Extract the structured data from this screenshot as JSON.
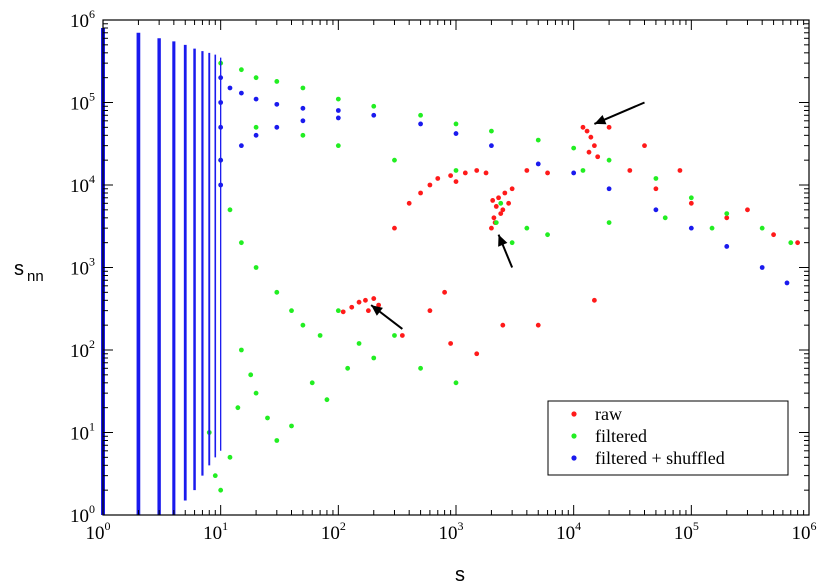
{
  "chart_data": {
    "type": "scatter",
    "xscale": "log",
    "yscale": "log",
    "xlim": [
      1,
      1000000
    ],
    "ylim": [
      1,
      1000000
    ],
    "xlabel": "s",
    "ylabel": "s",
    "ylabel_subscript": "nn",
    "tick_base": "10",
    "xticks": [
      {
        "value": 1,
        "exp": "0"
      },
      {
        "value": 10,
        "exp": "1"
      },
      {
        "value": 100,
        "exp": "2"
      },
      {
        "value": 1000,
        "exp": "3"
      },
      {
        "value": 10000,
        "exp": "4"
      },
      {
        "value": 100000,
        "exp": "5"
      },
      {
        "value": 1000000,
        "exp": "6"
      }
    ],
    "yticks": [
      {
        "value": 1,
        "exp": "0"
      },
      {
        "value": 10,
        "exp": "1"
      },
      {
        "value": 100,
        "exp": "2"
      },
      {
        "value": 1000,
        "exp": "3"
      },
      {
        "value": 10000,
        "exp": "4"
      },
      {
        "value": 100000,
        "exp": "5"
      },
      {
        "value": 1000000,
        "exp": "6"
      }
    ],
    "legend_position": "bottom-right",
    "grid": false,
    "series": [
      {
        "name": "raw",
        "color": "#ff1a1a",
        "points": [
          [
            150,
            380
          ],
          [
            130,
            330
          ],
          [
            170,
            400
          ],
          [
            200,
            420
          ],
          [
            220,
            350
          ],
          [
            180,
            300
          ],
          [
            110,
            290
          ],
          [
            2000,
            3000
          ],
          [
            2100,
            4000
          ],
          [
            2200,
            5500
          ],
          [
            2050,
            6500
          ],
          [
            2300,
            7000
          ],
          [
            2400,
            4500
          ],
          [
            2150,
            3500
          ],
          [
            2600,
            8000
          ],
          [
            3000,
            9000
          ],
          [
            2500,
            5000
          ],
          [
            2800,
            6000
          ],
          [
            12000,
            50000
          ],
          [
            13000,
            45000
          ],
          [
            14000,
            38000
          ],
          [
            15000,
            30000
          ],
          [
            13500,
            25000
          ],
          [
            16000,
            22000
          ],
          [
            700,
            12000
          ],
          [
            900,
            13000
          ],
          [
            1200,
            14000
          ],
          [
            1500,
            15000
          ],
          [
            1800,
            14000
          ],
          [
            600,
            10000
          ],
          [
            400,
            6000
          ],
          [
            500,
            8000
          ],
          [
            300,
            3000
          ],
          [
            1000,
            11000
          ],
          [
            4000,
            15000
          ],
          [
            6000,
            14000
          ],
          [
            30000,
            15000
          ],
          [
            50000,
            9000
          ],
          [
            100000,
            6000
          ],
          [
            200000,
            4000
          ],
          [
            500000,
            2500
          ],
          [
            800000,
            2000
          ],
          [
            20000,
            50000
          ],
          [
            40000,
            30000
          ],
          [
            80000,
            15000
          ],
          [
            300000,
            5000
          ],
          [
            900,
            120
          ],
          [
            1500,
            90
          ],
          [
            600,
            300
          ],
          [
            2500,
            200
          ],
          [
            350,
            150
          ],
          [
            800,
            500
          ],
          [
            15000,
            400
          ],
          [
            5000,
            200
          ]
        ]
      },
      {
        "name": "filtered",
        "color": "#22ee22",
        "points": [
          [
            10,
            300000
          ],
          [
            15,
            250000
          ],
          [
            20,
            200000
          ],
          [
            30,
            180000
          ],
          [
            50,
            150000
          ],
          [
            100,
            110000
          ],
          [
            200,
            90000
          ],
          [
            500,
            70000
          ],
          [
            1000,
            55000
          ],
          [
            2000,
            45000
          ],
          [
            5000,
            35000
          ],
          [
            10000,
            28000
          ],
          [
            20000,
            20000
          ],
          [
            50000,
            12000
          ],
          [
            100000,
            7000
          ],
          [
            200000,
            4500
          ],
          [
            400000,
            3000
          ],
          [
            700000,
            2000
          ],
          [
            10,
            20000
          ],
          [
            12,
            5000
          ],
          [
            15,
            2000
          ],
          [
            20,
            1000
          ],
          [
            30,
            500
          ],
          [
            40,
            300
          ],
          [
            50,
            200
          ],
          [
            70,
            150
          ],
          [
            100,
            300
          ],
          [
            150,
            120
          ],
          [
            200,
            80
          ],
          [
            300,
            150
          ],
          [
            500,
            60
          ],
          [
            1000,
            40
          ],
          [
            20,
            50000
          ],
          [
            50,
            40000
          ],
          [
            100,
            30000
          ],
          [
            300,
            20000
          ],
          [
            1000,
            15000
          ],
          [
            15,
            100
          ],
          [
            20,
            30
          ],
          [
            25,
            15
          ],
          [
            30,
            8
          ],
          [
            40,
            12
          ],
          [
            60,
            40
          ],
          [
            80,
            25
          ],
          [
            120,
            60
          ],
          [
            8,
            10
          ],
          [
            9,
            3
          ],
          [
            10,
            2
          ],
          [
            12,
            5
          ],
          [
            14,
            20
          ],
          [
            18,
            50
          ],
          [
            2200,
            3500
          ],
          [
            2400,
            6000
          ],
          [
            3000,
            2000
          ],
          [
            4000,
            3000
          ],
          [
            6000,
            2500
          ],
          [
            12000,
            15000
          ],
          [
            20000,
            3500
          ],
          [
            60000,
            4000
          ],
          [
            150000,
            3000
          ]
        ]
      },
      {
        "name": "filtered + shuffled",
        "color": "#1a1aee",
        "points": [
          [
            10,
            200000
          ],
          [
            10,
            100000
          ],
          [
            10,
            50000
          ],
          [
            10,
            20000
          ],
          [
            10,
            10000
          ],
          [
            12,
            150000
          ],
          [
            15,
            130000
          ],
          [
            20,
            110000
          ],
          [
            30,
            95000
          ],
          [
            50,
            85000
          ],
          [
            15,
            30000
          ],
          [
            20,
            40000
          ],
          [
            30,
            50000
          ],
          [
            50,
            60000
          ],
          [
            100,
            65000
          ],
          [
            100,
            80000
          ],
          [
            200,
            70000
          ],
          [
            500,
            55000
          ],
          [
            1000,
            42000
          ],
          [
            2000,
            30000
          ],
          [
            5000,
            18000
          ],
          [
            10000,
            14000
          ],
          [
            20000,
            9000
          ],
          [
            50000,
            5000
          ],
          [
            100000,
            3000
          ],
          [
            200000,
            1800
          ],
          [
            400000,
            1000
          ],
          [
            650000,
            650
          ]
        ]
      }
    ],
    "column_points": {
      "series": "filtered + shuffled",
      "x": [
        1,
        2,
        3,
        4,
        5,
        6,
        7,
        8,
        9,
        10
      ],
      "y_min": [
        1,
        1,
        1,
        1,
        1.5,
        2,
        3,
        4,
        5,
        6
      ],
      "y_max": [
        800000,
        700000,
        600000,
        550000,
        500000,
        450000,
        420000,
        400000,
        380000,
        350000
      ]
    },
    "annotations": [
      {
        "type": "arrow",
        "from": [
          40000,
          100000
        ],
        "to": [
          15000,
          55000
        ]
      },
      {
        "type": "arrow",
        "from": [
          3000,
          1000
        ],
        "to": [
          2300,
          2500
        ]
      },
      {
        "type": "arrow",
        "from": [
          350,
          180
        ],
        "to": [
          190,
          350
        ]
      }
    ]
  }
}
